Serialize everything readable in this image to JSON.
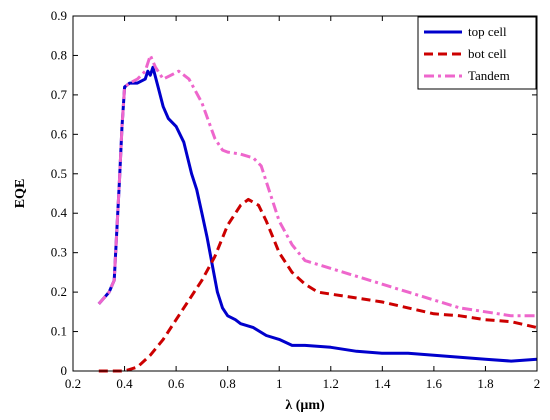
{
  "chart_data": {
    "type": "line",
    "title": "",
    "xlabel": "λ (μm)",
    "ylabel": "EQE",
    "xlim": [
      0.2,
      2.0
    ],
    "ylim": [
      0,
      0.9
    ],
    "xticks": [
      0.2,
      0.4,
      0.6,
      0.8,
      1.0,
      1.2,
      1.4,
      1.6,
      1.8,
      2.0
    ],
    "xtick_labels": [
      "0.2",
      "0.4",
      "0.6",
      "0.8",
      "1",
      "1.2",
      "1.4",
      "1.6",
      "1.8",
      "2"
    ],
    "yticks": [
      0,
      0.1,
      0.2,
      0.3,
      0.4,
      0.5,
      0.6,
      0.7,
      0.8,
      0.9
    ],
    "ytick_labels": [
      "0",
      "0.1",
      "0.2",
      "0.3",
      "0.4",
      "0.5",
      "0.6",
      "0.7",
      "0.8",
      "0.9"
    ],
    "grid": false,
    "legend_position": "top-right",
    "series": [
      {
        "name": "top cell",
        "color": "#0000cc",
        "dash": "solid",
        "points": [
          [
            0.3,
            0.17
          ],
          [
            0.34,
            0.2
          ],
          [
            0.36,
            0.23
          ],
          [
            0.38,
            0.48
          ],
          [
            0.39,
            0.62
          ],
          [
            0.4,
            0.72
          ],
          [
            0.42,
            0.73
          ],
          [
            0.45,
            0.73
          ],
          [
            0.48,
            0.74
          ],
          [
            0.49,
            0.76
          ],
          [
            0.5,
            0.75
          ],
          [
            0.51,
            0.77
          ],
          [
            0.53,
            0.72
          ],
          [
            0.55,
            0.67
          ],
          [
            0.57,
            0.64
          ],
          [
            0.6,
            0.62
          ],
          [
            0.63,
            0.58
          ],
          [
            0.66,
            0.5
          ],
          [
            0.68,
            0.46
          ],
          [
            0.7,
            0.4
          ],
          [
            0.72,
            0.34
          ],
          [
            0.74,
            0.27
          ],
          [
            0.76,
            0.2
          ],
          [
            0.78,
            0.16
          ],
          [
            0.8,
            0.14
          ],
          [
            0.83,
            0.13
          ],
          [
            0.85,
            0.12
          ],
          [
            0.9,
            0.11
          ],
          [
            0.95,
            0.09
          ],
          [
            1.0,
            0.08
          ],
          [
            1.05,
            0.065
          ],
          [
            1.1,
            0.065
          ],
          [
            1.2,
            0.06
          ],
          [
            1.3,
            0.05
          ],
          [
            1.4,
            0.045
          ],
          [
            1.5,
            0.045
          ],
          [
            1.6,
            0.04
          ],
          [
            1.7,
            0.035
          ],
          [
            1.8,
            0.03
          ],
          [
            1.9,
            0.025
          ],
          [
            2.0,
            0.03
          ]
        ]
      },
      {
        "name": "bot cell",
        "color": "#cc0000",
        "dash": "dashed",
        "points": [
          [
            0.3,
            0.0
          ],
          [
            0.35,
            0.0
          ],
          [
            0.4,
            0.0
          ],
          [
            0.45,
            0.01
          ],
          [
            0.5,
            0.04
          ],
          [
            0.55,
            0.08
          ],
          [
            0.6,
            0.13
          ],
          [
            0.65,
            0.18
          ],
          [
            0.7,
            0.23
          ],
          [
            0.75,
            0.29
          ],
          [
            0.8,
            0.37
          ],
          [
            0.85,
            0.42
          ],
          [
            0.88,
            0.435
          ],
          [
            0.92,
            0.42
          ],
          [
            0.95,
            0.38
          ],
          [
            1.0,
            0.3
          ],
          [
            1.05,
            0.25
          ],
          [
            1.1,
            0.22
          ],
          [
            1.15,
            0.2
          ],
          [
            1.2,
            0.195
          ],
          [
            1.3,
            0.185
          ],
          [
            1.4,
            0.175
          ],
          [
            1.5,
            0.16
          ],
          [
            1.6,
            0.145
          ],
          [
            1.7,
            0.14
          ],
          [
            1.8,
            0.13
          ],
          [
            1.9,
            0.125
          ],
          [
            2.0,
            0.11
          ]
        ]
      },
      {
        "name": "Tandem",
        "color": "#ee66cc",
        "dash": "dashdot",
        "points": [
          [
            0.3,
            0.17
          ],
          [
            0.34,
            0.2
          ],
          [
            0.36,
            0.23
          ],
          [
            0.38,
            0.48
          ],
          [
            0.39,
            0.62
          ],
          [
            0.4,
            0.72
          ],
          [
            0.42,
            0.73
          ],
          [
            0.45,
            0.74
          ],
          [
            0.48,
            0.76
          ],
          [
            0.5,
            0.8
          ],
          [
            0.52,
            0.77
          ],
          [
            0.55,
            0.74
          ],
          [
            0.58,
            0.75
          ],
          [
            0.61,
            0.76
          ],
          [
            0.65,
            0.74
          ],
          [
            0.7,
            0.68
          ],
          [
            0.75,
            0.59
          ],
          [
            0.78,
            0.56
          ],
          [
            0.8,
            0.555
          ],
          [
            0.85,
            0.55
          ],
          [
            0.9,
            0.54
          ],
          [
            0.93,
            0.52
          ],
          [
            0.95,
            0.48
          ],
          [
            1.0,
            0.38
          ],
          [
            1.05,
            0.32
          ],
          [
            1.1,
            0.28
          ],
          [
            1.2,
            0.26
          ],
          [
            1.3,
            0.24
          ],
          [
            1.4,
            0.22
          ],
          [
            1.5,
            0.2
          ],
          [
            1.6,
            0.18
          ],
          [
            1.7,
            0.16
          ],
          [
            1.8,
            0.15
          ],
          [
            1.9,
            0.14
          ],
          [
            2.0,
            0.14
          ]
        ]
      }
    ]
  }
}
